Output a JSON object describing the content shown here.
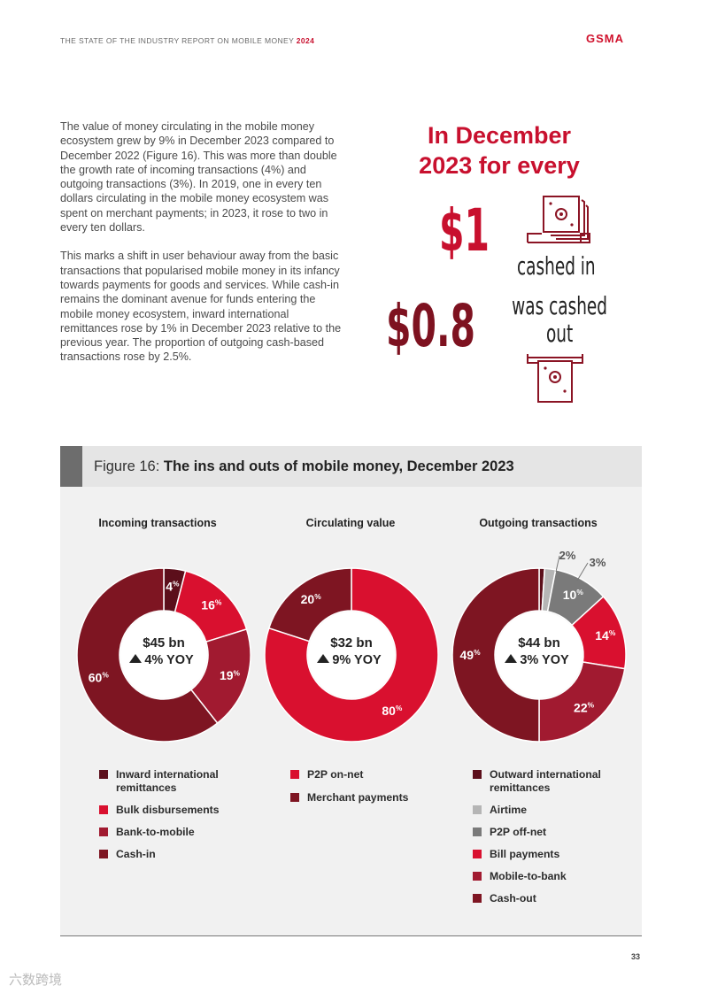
{
  "header": {
    "report_title": "THE STATE OF THE INDUSTRY REPORT ON MOBILE MONEY",
    "year": "2024",
    "logo_text": "GSMA"
  },
  "body": {
    "para1": "The value of money circulating in the mobile money ecosystem grew by 9% in December 2023 compared to December 2022 (Figure 16). This was more than double the growth rate of incoming transactions (4%) and outgoing transactions (3%). In 2019, one in every ten dollars circulating in the mobile money ecosystem was spent on merchant payments; in 2023, it rose to two in every ten dollars.",
    "para2": "This marks a shift in user behaviour away from the basic transactions that popularised mobile money in its infancy towards payments for goods and services. While cash-in remains the dominant avenue for funds entering the mobile money ecosystem, inward international remittances rose by 1% in December 2023 relative to the previous year. The proportion of outgoing cash-based transactions rose by 2.5%."
  },
  "highlight": {
    "line1": "In December",
    "line2": "2023 for every",
    "amount_in": "$1",
    "caption_in": "cashed in",
    "amount_out": "$0.8",
    "caption_out_1": "was cashed",
    "caption_out_2": "out"
  },
  "figure": {
    "label": "Figure 16:",
    "title": "The ins and outs of mobile money, December 2023"
  },
  "chart_data": [
    {
      "type": "pie",
      "title": "Incoming transactions",
      "center_value": "$45 bn",
      "center_change": "4% YOY",
      "labels": [
        "Inward international remittances",
        "Bulk disbursements",
        "Bank-to-mobile",
        "Cash-in"
      ],
      "values": [
        4,
        16,
        19,
        60
      ],
      "value_labels": [
        "4%",
        "16%",
        "19%",
        "60%"
      ],
      "colors": [
        "#5c0f1b",
        "#d9102f",
        "#a11a30",
        "#7e1522"
      ]
    },
    {
      "type": "pie",
      "title": "Circulating value",
      "center_value": "$32 bn",
      "center_change": "9% YOY",
      "labels": [
        "P2P on-net",
        "Merchant payments"
      ],
      "values": [
        80,
        20
      ],
      "value_labels": [
        "80%",
        "20%"
      ],
      "colors": [
        "#d9102f",
        "#7e1522"
      ]
    },
    {
      "type": "pie",
      "title": "Outgoing transactions",
      "center_value": "$44 bn",
      "center_change": "3% YOY",
      "labels": [
        "Outward international remittances",
        "Airtime",
        "P2P off-net",
        "Bill payments",
        "Mobile-to-bank",
        "Cash-out"
      ],
      "values": [
        1,
        2,
        10,
        14,
        22,
        49
      ],
      "value_labels": [
        "",
        "2%",
        "10%",
        "14%",
        "22%",
        "49%"
      ],
      "extra_label": "3%",
      "colors": [
        "#5c0f1b",
        "#b5b5b5",
        "#7a7a7a",
        "#d9102f",
        "#a11a30",
        "#7e1522"
      ]
    }
  ],
  "page_number": "33",
  "watermark": "六数跨境"
}
